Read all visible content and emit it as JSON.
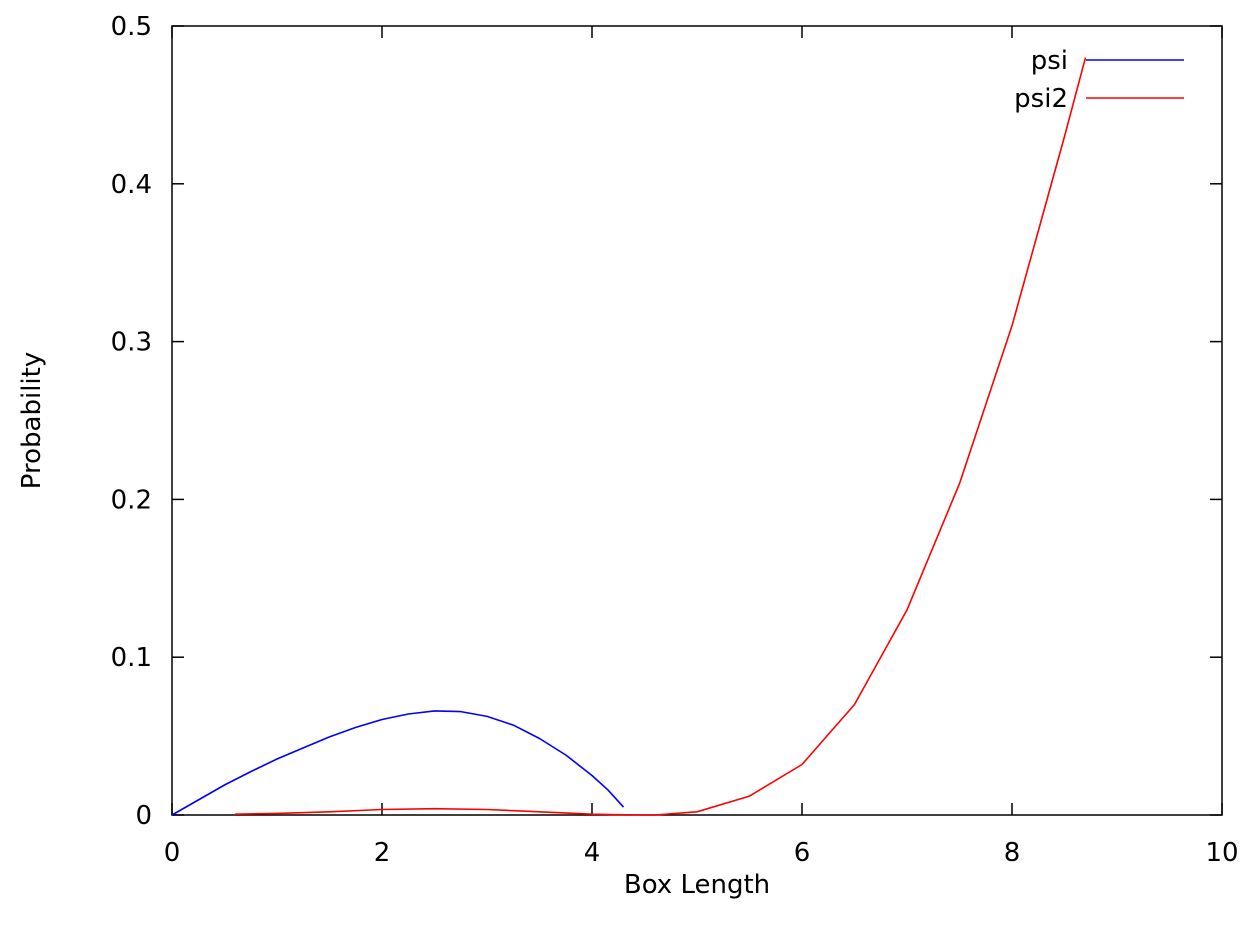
{
  "chart_data": {
    "type": "line",
    "xlabel": "Box Length",
    "ylabel": "Probability",
    "xlim": [
      0,
      10
    ],
    "ylim": [
      0,
      0.5
    ],
    "xticks": [
      {
        "value": 0,
        "label": "0"
      },
      {
        "value": 2,
        "label": "2"
      },
      {
        "value": 4,
        "label": "4"
      },
      {
        "value": 6,
        "label": "6"
      },
      {
        "value": 8,
        "label": "8"
      },
      {
        "value": 10,
        "label": "10"
      }
    ],
    "yticks": [
      {
        "value": 0,
        "label": "0"
      },
      {
        "value": 0.1,
        "label": "0.1"
      },
      {
        "value": 0.2,
        "label": "0.2"
      },
      {
        "value": 0.3,
        "label": "0.3"
      },
      {
        "value": 0.4,
        "label": "0.4"
      },
      {
        "value": 0.5,
        "label": "0.5"
      }
    ],
    "grid": false,
    "legend_position": "top-right",
    "series": [
      {
        "name": "psi",
        "color": "#0000ff",
        "x": [
          0.0,
          0.25,
          0.5,
          0.75,
          1.0,
          1.25,
          1.5,
          1.75,
          2.0,
          2.25,
          2.5,
          2.75,
          3.0,
          3.25,
          3.5,
          3.75,
          4.0,
          4.15,
          4.3
        ],
        "y": [
          0.0,
          0.0095,
          0.019,
          0.0275,
          0.0355,
          0.0425,
          0.0495,
          0.0555,
          0.0605,
          0.064,
          0.066,
          0.0655,
          0.0625,
          0.057,
          0.0485,
          0.038,
          0.025,
          0.016,
          0.005
        ]
      },
      {
        "name": "psi2",
        "color": "#ff0000",
        "x": [
          0.6,
          1.0,
          1.5,
          2.0,
          2.5,
          3.0,
          3.5,
          4.0,
          4.3,
          4.6,
          5.0,
          5.5,
          6.0,
          6.5,
          7.0,
          7.5,
          8.0,
          8.5,
          8.7
        ],
        "y": [
          0.0005,
          0.001,
          0.002,
          0.0035,
          0.004,
          0.0035,
          0.002,
          0.0005,
          0.0001,
          0.0,
          0.002,
          0.012,
          0.032,
          0.07,
          0.13,
          0.21,
          0.31,
          0.43,
          0.48
        ]
      }
    ]
  }
}
